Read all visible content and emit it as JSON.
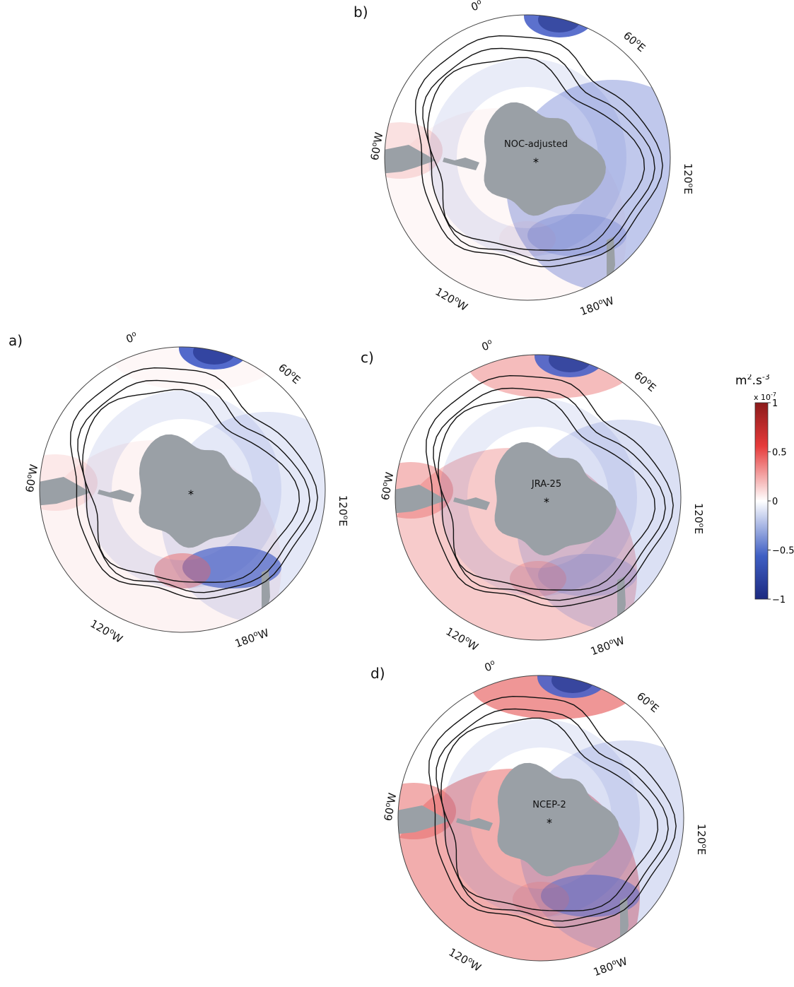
{
  "panels": [
    {
      "id": "a",
      "letter": "a)",
      "dataset": "",
      "star": "*",
      "lon_labels": {
        "top": "0",
        "top_sup": "o",
        "ne": "60",
        "ne_sup": "o",
        "ne_suf": "E",
        "e": "120",
        "e_sup": "o",
        "e_suf": "E",
        "w": "60",
        "w_sup": "o",
        "w_suf": "W",
        "sw": "120",
        "sw_sup": "o",
        "sw_suf": "W",
        "s": "180",
        "s_sup": "o",
        "s_suf": "W"
      }
    },
    {
      "id": "b",
      "letter": "b)",
      "dataset": "NOC-adjusted",
      "star": "*",
      "lon_labels": {
        "top": "0",
        "top_sup": "o",
        "ne": "60",
        "ne_sup": "o",
        "ne_suf": "E",
        "e": "120",
        "e_sup": "o",
        "e_suf": "E",
        "w": "60",
        "w_sup": "o",
        "w_suf": "W",
        "sw": "120",
        "sw_sup": "o",
        "sw_suf": "W",
        "s": "180",
        "s_sup": "o",
        "s_suf": "W"
      }
    },
    {
      "id": "c",
      "letter": "c)",
      "dataset": "JRA-25",
      "star": "*",
      "lon_labels": {
        "top": "0",
        "top_sup": "o",
        "ne": "60",
        "ne_sup": "o",
        "ne_suf": "E",
        "e": "120",
        "e_sup": "o",
        "e_suf": "E",
        "w": "60",
        "w_sup": "o",
        "w_suf": "W",
        "sw": "120",
        "sw_sup": "o",
        "sw_suf": "W",
        "s": "180",
        "s_sup": "o",
        "s_suf": "W"
      }
    },
    {
      "id": "d",
      "letter": "d)",
      "dataset": "NCEP-2",
      "star": "*",
      "lon_labels": {
        "top": "0",
        "top_sup": "o",
        "ne": "60",
        "ne_sup": "o",
        "ne_suf": "E",
        "e": "120",
        "e_sup": "o",
        "e_suf": "E",
        "w": "60",
        "w_sup": "o",
        "w_suf": "W",
        "sw": "120",
        "sw_sup": "o",
        "sw_suf": "W",
        "s": "180",
        "s_sup": "o",
        "s_suf": "W"
      }
    }
  ],
  "colorbar": {
    "unit_base": "m",
    "unit_sup1": "2",
    "unit_mid": ".s",
    "unit_sup2": "-3",
    "scale_prefix": "x 10",
    "scale_sup": "-7",
    "ticks": [
      "1",
      "0.5",
      "0",
      "−0.5",
      "−1"
    ],
    "colors": {
      "top": "#8b1a1a",
      "upper": "#e63a3a",
      "mid": "#ffffff",
      "lower": "#3f5fc4",
      "bottom": "#1c2a80"
    }
  },
  "colors": {
    "land": "#9aa0a6",
    "blue": "#4a62c8",
    "red": "#e86a6a",
    "contour": "#111111"
  }
}
